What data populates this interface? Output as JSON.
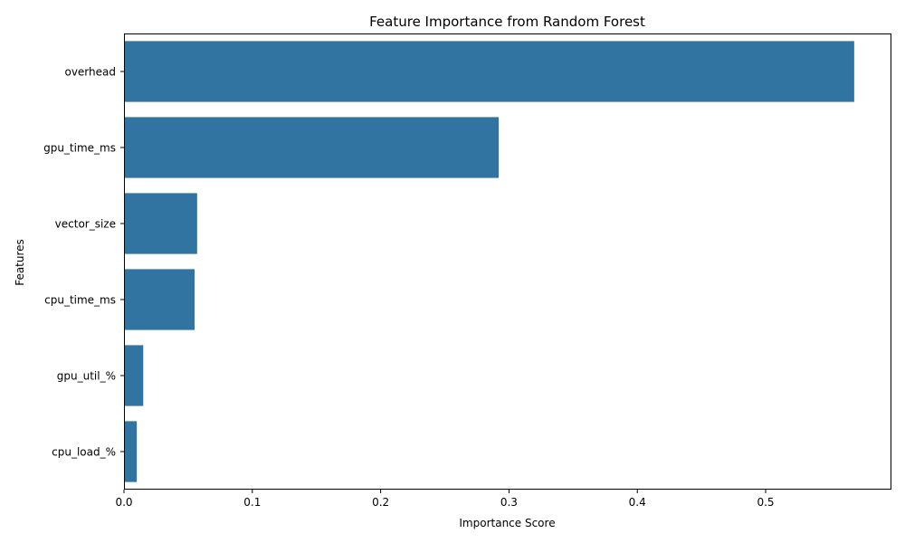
{
  "chart_data": {
    "type": "bar",
    "orientation": "horizontal",
    "title": "Feature Importance from Random Forest",
    "xlabel": "Importance Score",
    "ylabel": "Features",
    "categories": [
      "overhead",
      "gpu_time_ms",
      "vector_size",
      "cpu_time_ms",
      "gpu_util_%",
      "cpu_load_%"
    ],
    "values": [
      0.569,
      0.292,
      0.057,
      0.055,
      0.015,
      0.01
    ],
    "xlim": [
      0,
      0.598
    ],
    "xticks": [
      0,
      0.1,
      0.2,
      0.3,
      0.4,
      0.5
    ],
    "xtick_labels": [
      "0.0",
      "0.1",
      "0.2",
      "0.3",
      "0.4",
      "0.5"
    ],
    "grid": false,
    "bar_color": "#3274a1"
  }
}
